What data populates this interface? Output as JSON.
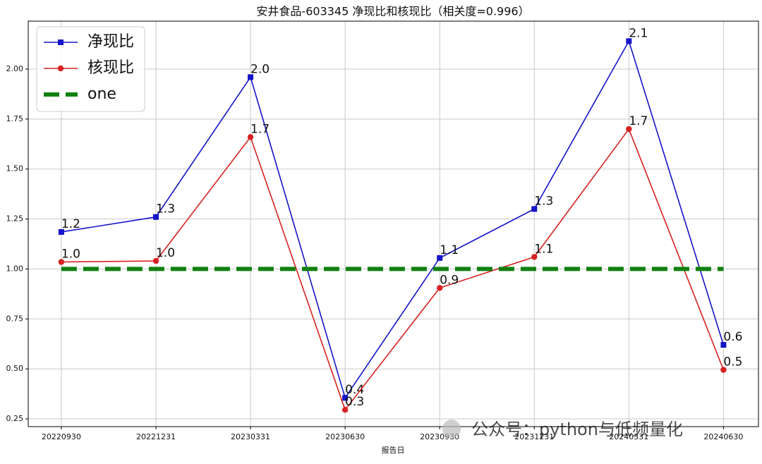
{
  "chart_data": {
    "type": "line",
    "title": "安井食品-603345 净现比和核现比（相关度=0.996）",
    "x_label": "报告日",
    "watermark": "公众号：python与低频量化",
    "categories": [
      "20220930",
      "20221231",
      "20230331",
      "20230630",
      "20230930",
      "20231231",
      "20240331",
      "20240630"
    ],
    "series": [
      {
        "name": "净现比",
        "color": "#1414c8",
        "marker": "square",
        "values": [
          1.185,
          1.26,
          1.96,
          0.355,
          1.055,
          1.3,
          2.14,
          0.62
        ],
        "value_labels": [
          "1.2",
          "1.3",
          "2.0",
          "0.4",
          "1.1",
          "1.3",
          "2.1",
          "0.6"
        ]
      },
      {
        "name": "核现比",
        "color": "#d62222",
        "marker": "circle",
        "values": [
          1.035,
          1.04,
          1.66,
          0.295,
          0.905,
          1.06,
          1.7,
          0.495
        ],
        "value_labels": [
          "1.0",
          "1.0",
          "1.7",
          "0.3",
          "0.9",
          "1.1",
          "1.7",
          "0.5"
        ]
      },
      {
        "name": "one",
        "color": "#108010",
        "dashed": true,
        "values": [
          1,
          1,
          1,
          1,
          1,
          1,
          1,
          1
        ]
      }
    ],
    "ylim": [
      0.211,
      2.24
    ],
    "yticks": [
      0.25,
      {
        "value": 0.5,
        "label": "0.50"
      },
      0.75,
      {
        "value": 1.0,
        "label": "1.00"
      },
      1.25,
      {
        "value": 1.5,
        "label": "1.50"
      },
      1.75,
      {
        "value": 2.0,
        "label": "2.00"
      }
    ],
    "grid": true,
    "legend": "upper left"
  }
}
